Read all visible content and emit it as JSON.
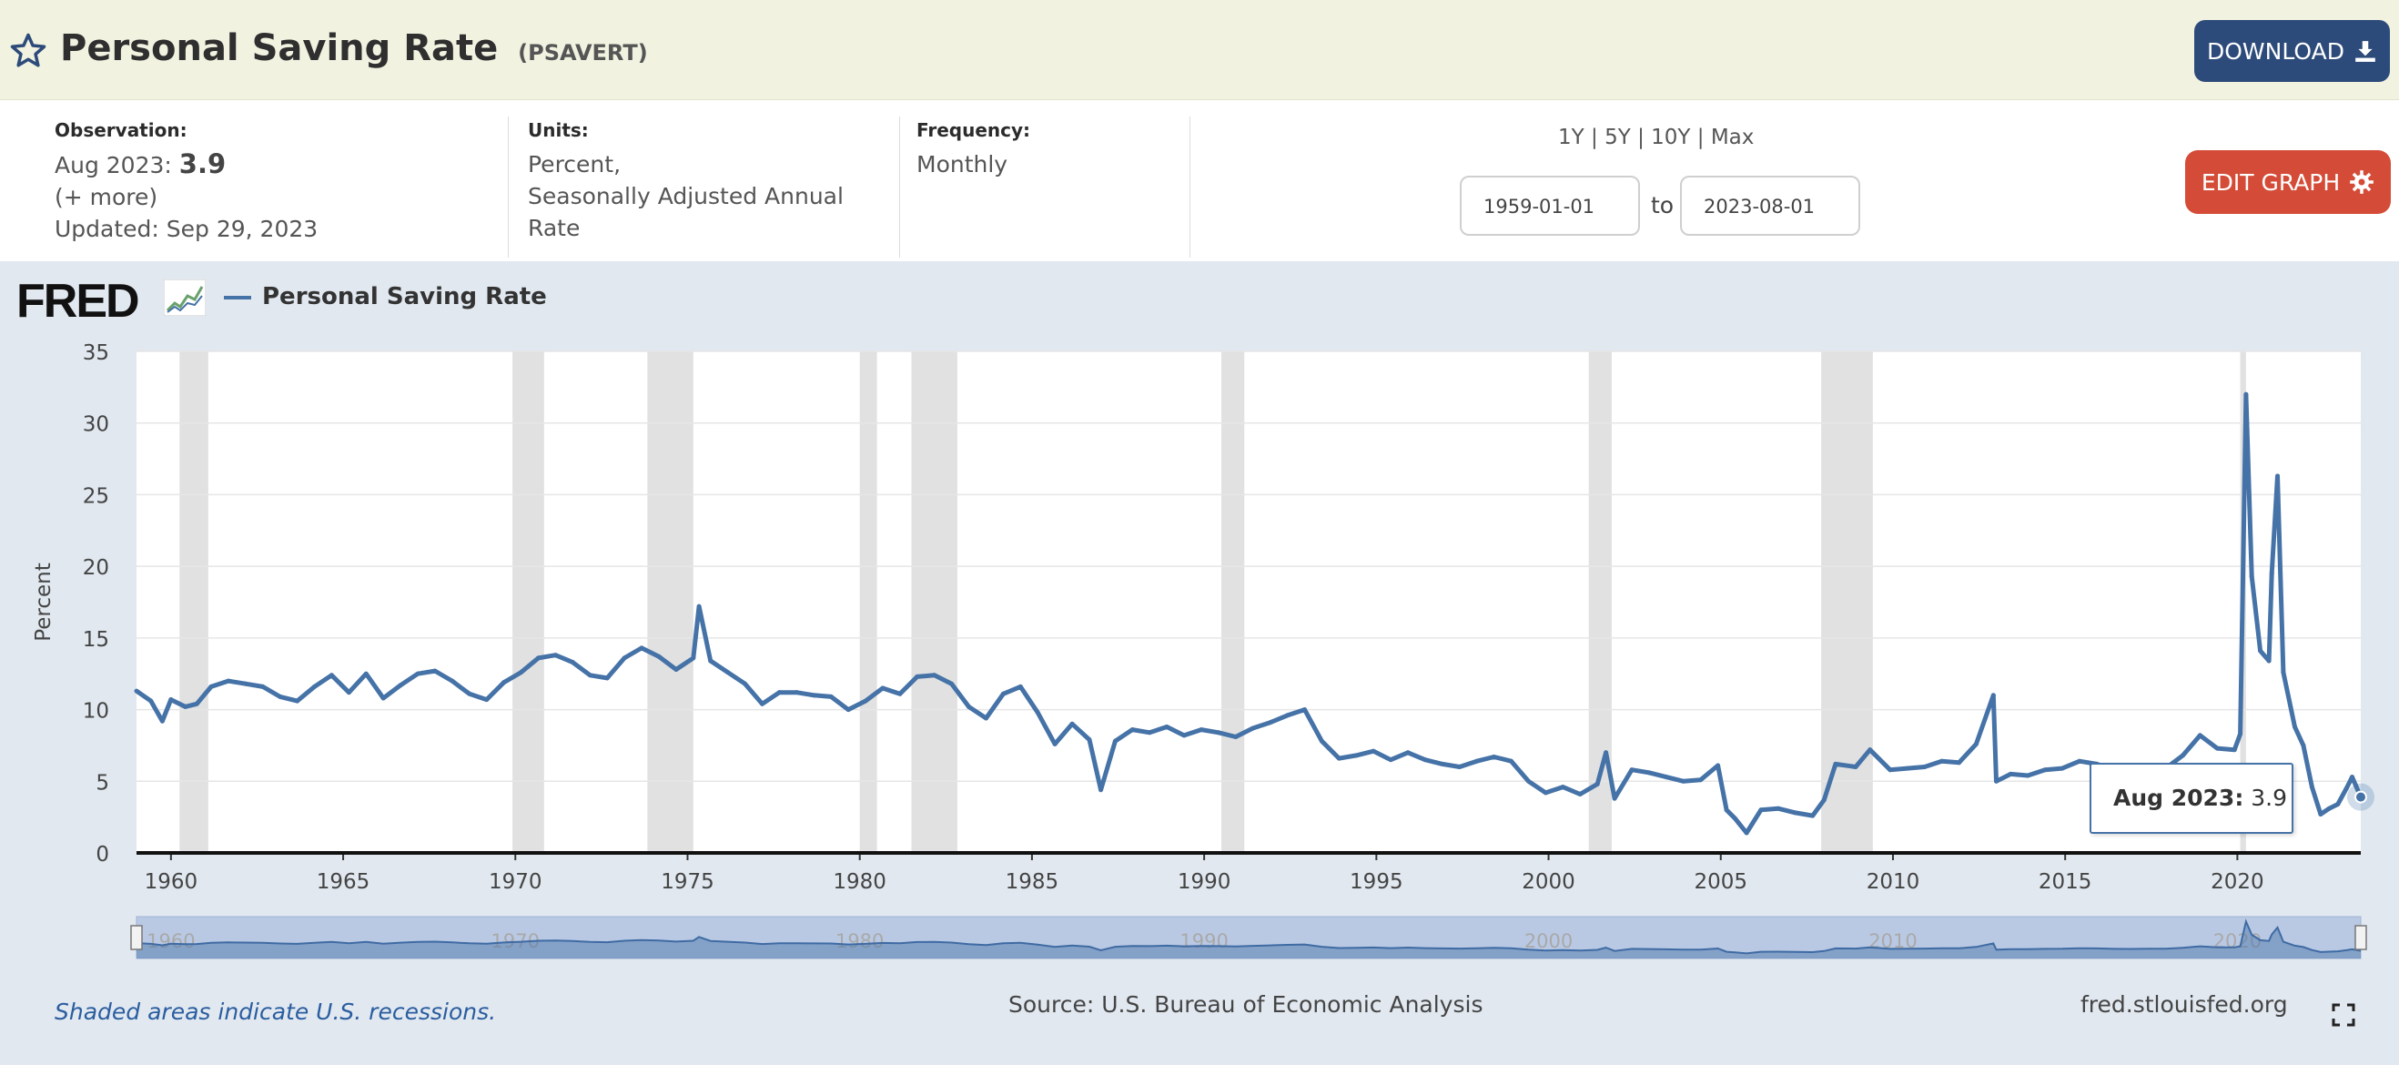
{
  "header": {
    "title": "Personal Saving Rate",
    "code": "(PSAVERT)",
    "download_label": "DOWNLOAD"
  },
  "meta": {
    "observation_label": "Observation:",
    "observation_date": "Aug 2023:",
    "observation_value": "3.9",
    "more_link": "(+ more)",
    "updated": "Updated: Sep 29, 2023",
    "units_label": "Units:",
    "units_line1": "Percent,",
    "units_line2": "Seasonally Adjusted Annual",
    "units_line3": "Rate",
    "frequency_label": "Frequency:",
    "frequency_value": "Monthly",
    "range_links": [
      "1Y",
      "5Y",
      "10Y",
      "Max"
    ],
    "start_date": "1959-01-01",
    "to_label": "to",
    "end_date": "2023-08-01",
    "edit_graph_label": "EDIT GRAPH"
  },
  "graph": {
    "logo_text": "FRED",
    "legend_label": "Personal Saving Rate",
    "source": "Source: U.S. Bureau of Economic Analysis",
    "recession_note": "Shaded areas indicate U.S. recessions.",
    "site_url": "fred.stlouisfed.org",
    "tooltip_date": "Aug 2023:",
    "tooltip_value": "3.9"
  },
  "colors": {
    "series": "#4572a7",
    "recession": "#e1e1e1",
    "download_button": "#2d4b7a",
    "edit_button": "#d44c37",
    "header_bg": "#f1f2e0",
    "graph_bg": "#e1e8f0"
  },
  "chart_data": {
    "type": "line",
    "title": "Personal Saving Rate",
    "ylabel": "Percent",
    "xlabel": "",
    "xlim": [
      "1959-01",
      "2023-08"
    ],
    "ylim": [
      0,
      35
    ],
    "y_ticks": [
      0,
      5,
      10,
      15,
      20,
      25,
      30,
      35
    ],
    "x_ticks": [
      "1960",
      "1965",
      "1970",
      "1975",
      "1980",
      "1985",
      "1990",
      "1995",
      "2000",
      "2005",
      "2010",
      "2015",
      "2020"
    ],
    "grid": true,
    "legend": "top-left",
    "recessions": [
      [
        "1960-04",
        "1961-02"
      ],
      [
        "1969-12",
        "1970-11"
      ],
      [
        "1973-11",
        "1975-03"
      ],
      [
        "1980-01",
        "1980-07"
      ],
      [
        "1981-07",
        "1982-11"
      ],
      [
        "1990-07",
        "1991-03"
      ],
      [
        "2001-03",
        "2001-11"
      ],
      [
        "2007-12",
        "2009-06"
      ],
      [
        "2020-02",
        "2020-04"
      ]
    ],
    "series": [
      {
        "name": "Personal Saving Rate",
        "points": [
          [
            "1959-01",
            11.3
          ],
          [
            "1959-06",
            10.6
          ],
          [
            "1959-10",
            9.2
          ],
          [
            "1960-01",
            10.7
          ],
          [
            "1960-06",
            10.2
          ],
          [
            "1960-10",
            10.4
          ],
          [
            "1961-03",
            11.6
          ],
          [
            "1961-09",
            12.0
          ],
          [
            "1962-03",
            11.8
          ],
          [
            "1962-09",
            11.6
          ],
          [
            "1963-03",
            10.9
          ],
          [
            "1963-09",
            10.6
          ],
          [
            "1964-03",
            11.6
          ],
          [
            "1964-09",
            12.4
          ],
          [
            "1965-03",
            11.2
          ],
          [
            "1965-09",
            12.5
          ],
          [
            "1966-03",
            10.8
          ],
          [
            "1966-09",
            11.7
          ],
          [
            "1967-03",
            12.5
          ],
          [
            "1967-09",
            12.7
          ],
          [
            "1968-03",
            12.0
          ],
          [
            "1968-09",
            11.1
          ],
          [
            "1969-03",
            10.7
          ],
          [
            "1969-09",
            11.9
          ],
          [
            "1970-03",
            12.6
          ],
          [
            "1970-09",
            13.6
          ],
          [
            "1971-03",
            13.8
          ],
          [
            "1971-09",
            13.3
          ],
          [
            "1972-03",
            12.4
          ],
          [
            "1972-09",
            12.2
          ],
          [
            "1973-03",
            13.6
          ],
          [
            "1973-09",
            14.3
          ],
          [
            "1974-03",
            13.7
          ],
          [
            "1974-09",
            12.8
          ],
          [
            "1975-03",
            13.6
          ],
          [
            "1975-05",
            17.2
          ],
          [
            "1975-09",
            13.4
          ],
          [
            "1976-03",
            12.6
          ],
          [
            "1976-09",
            11.8
          ],
          [
            "1977-03",
            10.4
          ],
          [
            "1977-09",
            11.2
          ],
          [
            "1978-03",
            11.2
          ],
          [
            "1978-09",
            11.0
          ],
          [
            "1979-03",
            10.9
          ],
          [
            "1979-09",
            10.0
          ],
          [
            "1980-03",
            10.6
          ],
          [
            "1980-09",
            11.5
          ],
          [
            "1981-03",
            11.1
          ],
          [
            "1981-09",
            12.3
          ],
          [
            "1982-03",
            12.4
          ],
          [
            "1982-09",
            11.8
          ],
          [
            "1983-03",
            10.2
          ],
          [
            "1983-09",
            9.4
          ],
          [
            "1984-03",
            11.1
          ],
          [
            "1984-09",
            11.6
          ],
          [
            "1985-03",
            9.8
          ],
          [
            "1985-09",
            7.6
          ],
          [
            "1986-03",
            9.0
          ],
          [
            "1986-09",
            7.9
          ],
          [
            "1987-01",
            4.4
          ],
          [
            "1987-06",
            7.8
          ],
          [
            "1987-12",
            8.6
          ],
          [
            "1988-06",
            8.4
          ],
          [
            "1988-12",
            8.8
          ],
          [
            "1989-06",
            8.2
          ],
          [
            "1989-12",
            8.6
          ],
          [
            "1990-06",
            8.4
          ],
          [
            "1990-12",
            8.1
          ],
          [
            "1991-06",
            8.7
          ],
          [
            "1991-12",
            9.1
          ],
          [
            "1992-06",
            9.6
          ],
          [
            "1992-12",
            10.0
          ],
          [
            "1993-06",
            7.8
          ],
          [
            "1993-12",
            6.6
          ],
          [
            "1994-06",
            6.8
          ],
          [
            "1994-12",
            7.1
          ],
          [
            "1995-06",
            6.5
          ],
          [
            "1995-12",
            7.0
          ],
          [
            "1996-06",
            6.5
          ],
          [
            "1996-12",
            6.2
          ],
          [
            "1997-06",
            6.0
          ],
          [
            "1997-12",
            6.4
          ],
          [
            "1998-06",
            6.7
          ],
          [
            "1998-12",
            6.4
          ],
          [
            "1999-06",
            5.0
          ],
          [
            "1999-12",
            4.2
          ],
          [
            "2000-06",
            4.6
          ],
          [
            "2000-12",
            4.1
          ],
          [
            "2001-06",
            4.8
          ],
          [
            "2001-09",
            7.0
          ],
          [
            "2001-12",
            3.8
          ],
          [
            "2002-06",
            5.8
          ],
          [
            "2002-12",
            5.6
          ],
          [
            "2003-06",
            5.3
          ],
          [
            "2003-12",
            5.0
          ],
          [
            "2004-06",
            5.1
          ],
          [
            "2004-12",
            6.1
          ],
          [
            "2005-03",
            3.0
          ],
          [
            "2005-06",
            2.4
          ],
          [
            "2005-10",
            1.4
          ],
          [
            "2006-03",
            3.0
          ],
          [
            "2006-09",
            3.1
          ],
          [
            "2007-03",
            2.8
          ],
          [
            "2007-09",
            2.6
          ],
          [
            "2008-01",
            3.7
          ],
          [
            "2008-05",
            6.2
          ],
          [
            "2008-12",
            6.0
          ],
          [
            "2009-05",
            7.2
          ],
          [
            "2009-12",
            5.8
          ],
          [
            "2010-06",
            5.9
          ],
          [
            "2010-12",
            6.0
          ],
          [
            "2011-06",
            6.4
          ],
          [
            "2011-12",
            6.3
          ],
          [
            "2012-06",
            7.6
          ],
          [
            "2012-12",
            11.0
          ],
          [
            "2013-01",
            5.0
          ],
          [
            "2013-06",
            5.5
          ],
          [
            "2013-12",
            5.4
          ],
          [
            "2014-06",
            5.8
          ],
          [
            "2014-12",
            5.9
          ],
          [
            "2015-06",
            6.4
          ],
          [
            "2015-12",
            6.2
          ],
          [
            "2016-06",
            5.8
          ],
          [
            "2016-12",
            5.7
          ],
          [
            "2017-06",
            5.9
          ],
          [
            "2017-12",
            5.9
          ],
          [
            "2018-06",
            6.8
          ],
          [
            "2018-12",
            8.2
          ],
          [
            "2019-06",
            7.3
          ],
          [
            "2019-12",
            7.2
          ],
          [
            "2020-02",
            8.3
          ],
          [
            "2020-04",
            32.0
          ],
          [
            "2020-06",
            19.3
          ],
          [
            "2020-09",
            14.1
          ],
          [
            "2020-12",
            13.4
          ],
          [
            "2021-01",
            19.5
          ],
          [
            "2021-03",
            26.3
          ],
          [
            "2021-05",
            12.6
          ],
          [
            "2021-09",
            8.8
          ],
          [
            "2021-12",
            7.5
          ],
          [
            "2022-03",
            4.6
          ],
          [
            "2022-06",
            2.7
          ],
          [
            "2022-09",
            3.1
          ],
          [
            "2022-12",
            3.4
          ],
          [
            "2023-03",
            4.5
          ],
          [
            "2023-05",
            5.3
          ],
          [
            "2023-08",
            3.9
          ]
        ]
      }
    ]
  }
}
